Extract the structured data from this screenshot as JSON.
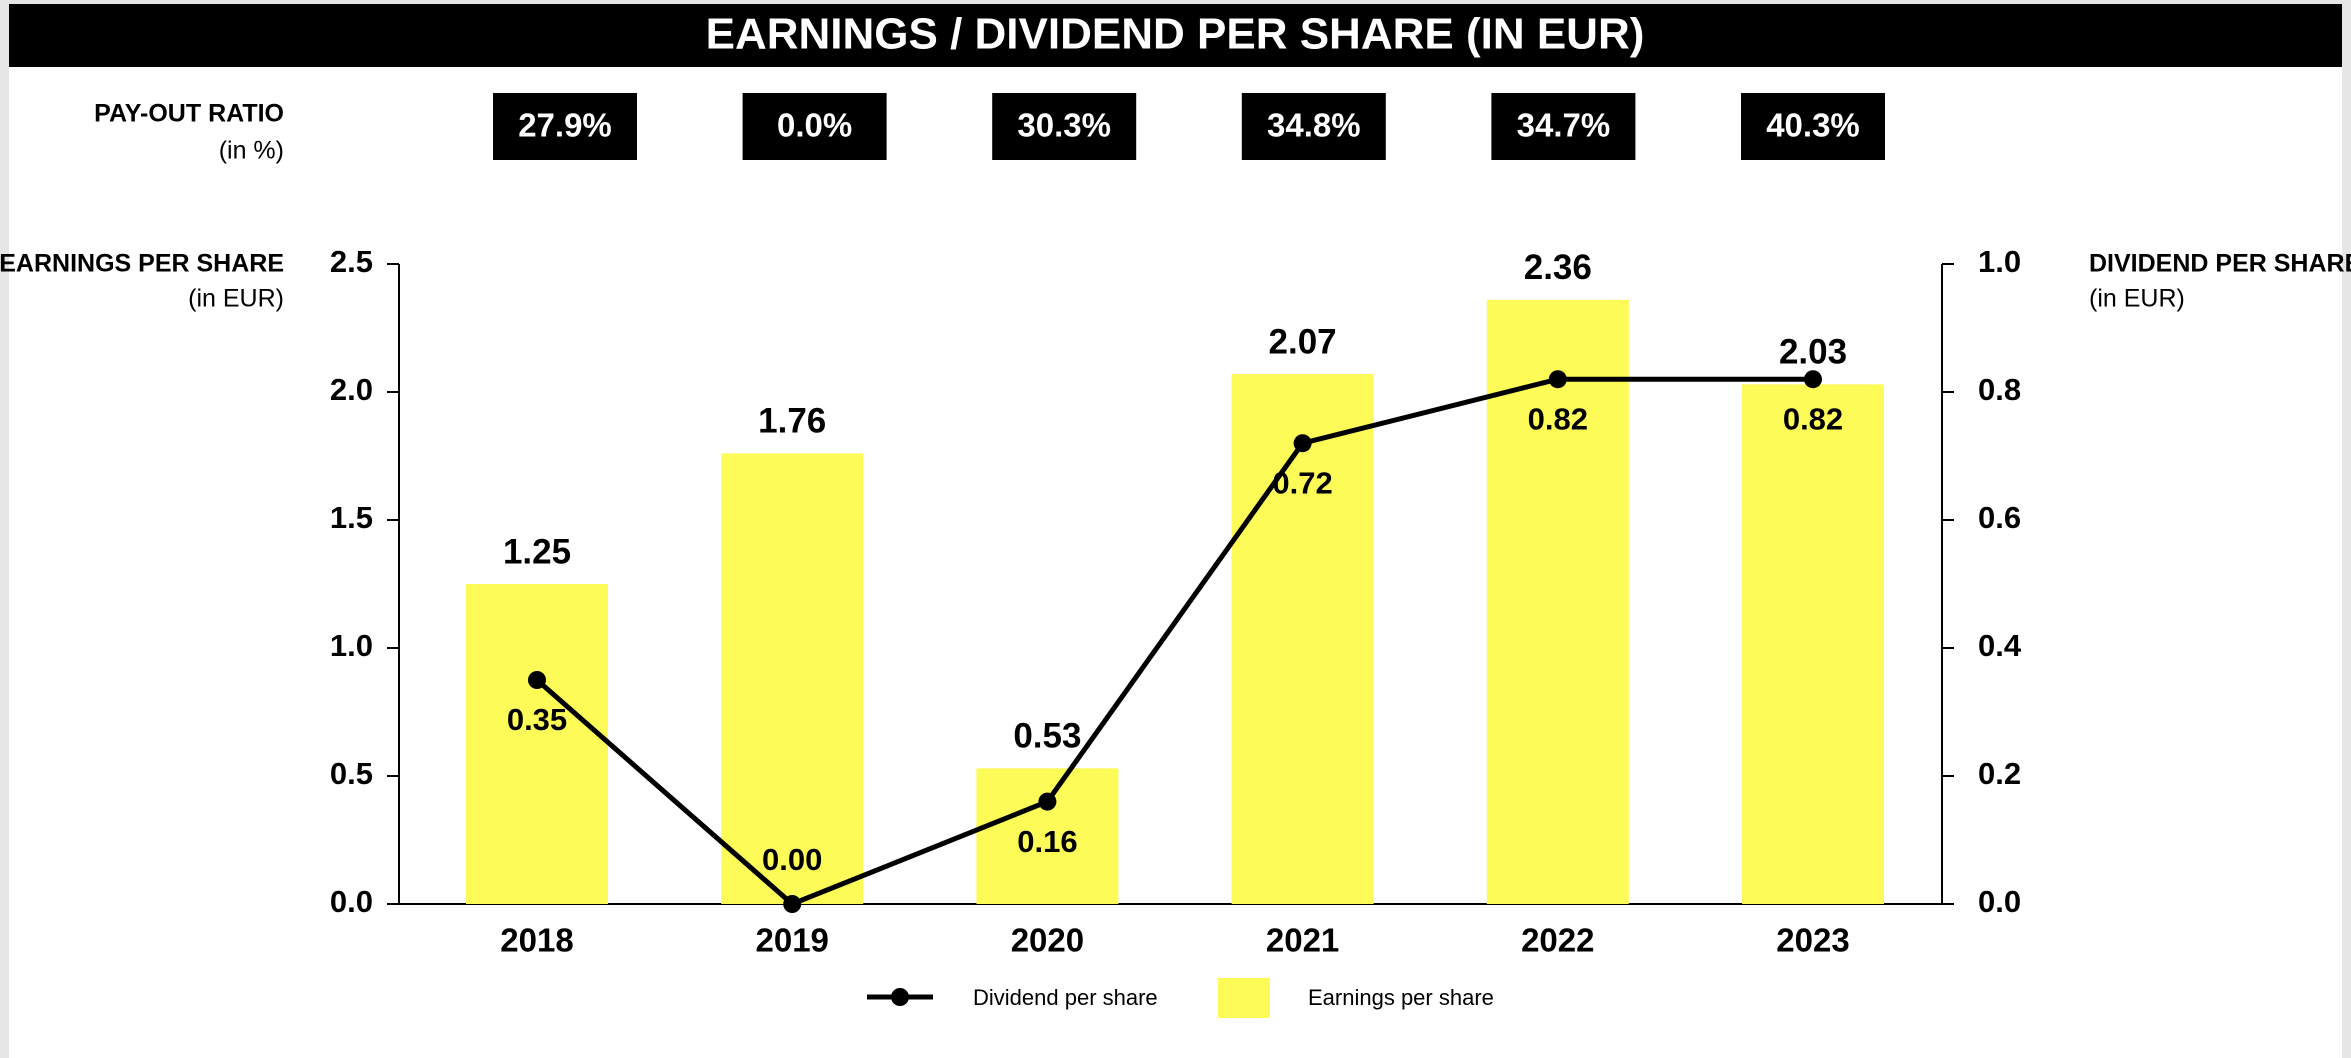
{
  "chart_data": {
    "type": "bar",
    "title": "EARNINGS / DIVIDEND PER SHARE (IN EUR)",
    "payout_ratio": {
      "label": "PAY-OUT RATIO",
      "unit": "(in %)",
      "values": [
        27.9,
        0.0,
        30.3,
        34.8,
        34.7,
        40.3
      ],
      "value_labels": [
        "27.9%",
        "0.0%",
        "30.3%",
        "34.8%",
        "34.7%",
        "40.3%"
      ]
    },
    "y_label": "EARNINGS PER SHARE",
    "y_unit": "(in EUR)",
    "y2_label": "DIVIDEND PER SHARE",
    "y2_unit": "(in EUR)",
    "categories": [
      "2018",
      "2019",
      "2020",
      "2021",
      "2022",
      "2023"
    ],
    "series": [
      {
        "name": "Earnings per share",
        "type": "bar",
        "color": "#fdfb57",
        "values": [
          1.25,
          1.76,
          0.53,
          2.07,
          2.36,
          2.03
        ]
      },
      {
        "name": "Dividend per share",
        "type": "line",
        "axis": "y2",
        "color": "#000000",
        "values": [
          0.35,
          0,
          0.16,
          0.72,
          0.82,
          0.82
        ],
        "value_labels": [
          "0.35",
          "0.00",
          "0.16",
          "0.72",
          "0.82",
          "0.82"
        ]
      }
    ],
    "ylim": [
      0,
      2.5
    ],
    "yticks": [
      {
        "value": 0,
        "label": "0.0"
      },
      0.5,
      {
        "value": 1,
        "label": "1.0"
      },
      1.5,
      {
        "value": 2,
        "label": "2.0"
      },
      2.5
    ],
    "y2lim": [
      0,
      1
    ],
    "y2ticks": [
      {
        "value": 0,
        "label": "0.0"
      },
      0.2,
      0.4,
      0.6,
      0.8,
      {
        "value": 1,
        "label": "1.0"
      }
    ]
  }
}
